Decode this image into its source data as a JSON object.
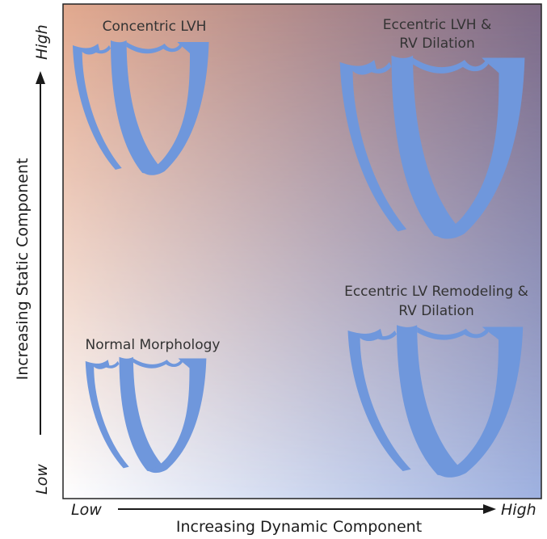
{
  "diagram": {
    "quadrants": {
      "top_left": {
        "label": "Concentric LVH"
      },
      "top_right": {
        "label_line1": "Eccentric LVH &",
        "label_line2": "RV Dilation"
      },
      "bottom_left": {
        "label": "Normal Morphology"
      },
      "bottom_right": {
        "label_line1": "Eccentric LV Remodeling &",
        "label_line2": "RV Dilation"
      }
    },
    "x_axis": {
      "title": "Increasing Dynamic Component",
      "low": "Low",
      "high": "High"
    },
    "y_axis": {
      "title": "Increasing Static Component",
      "low": "Low",
      "high": "High"
    },
    "colors": {
      "heart": "#6f97dc",
      "top_left_corner": "#e2a98e",
      "top_right_corner": "#7d6a86",
      "bottom_right_corner": "#9fb2e1",
      "bottom_left_corner": "#ffffff",
      "arrow": "#1a1a1a"
    }
  }
}
